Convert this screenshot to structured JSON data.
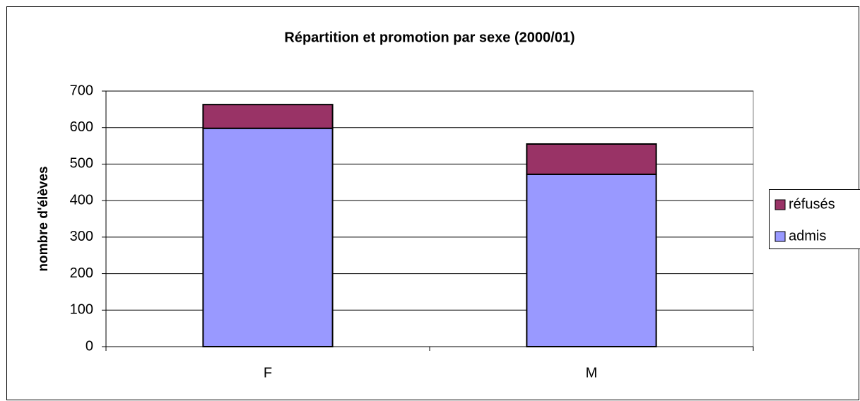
{
  "chart_data": {
    "type": "stacked-bar",
    "title": "Répartition et promotion par sexe (2000/01)",
    "y_label": "nombre d'élèves",
    "categories": [
      "F",
      "M"
    ],
    "series": [
      {
        "name": "admis",
        "color": "#9999ff",
        "values": [
          598,
          472
        ]
      },
      {
        "name": "réfusés",
        "color": "#993366",
        "values": [
          65,
          83
        ]
      }
    ],
    "ylim": [
      0,
      700
    ],
    "yticks": [
      0,
      100,
      200,
      300,
      400,
      500,
      600,
      700
    ],
    "grid": true,
    "legend": "right"
  }
}
